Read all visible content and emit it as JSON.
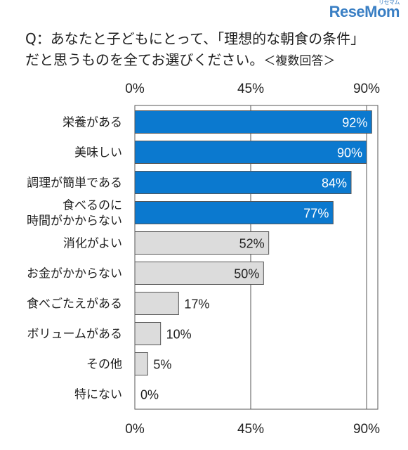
{
  "brand": {
    "logo_text": "ReseMom",
    "logo_sub": "リセマム"
  },
  "question": {
    "line1": "Q：あなたと子どもにとって、「理想的な朝食の条件」",
    "line2": "だと思うものを全てお選びください。",
    "note": "＜複数回答＞"
  },
  "colors": {
    "highlight": "#0b79cf",
    "other": "#dcdcdc",
    "border": "#555555",
    "text": "#222222"
  },
  "chart_data": {
    "type": "bar",
    "orientation": "horizontal",
    "categories": [
      "栄養がある",
      "美味しい",
      "調理が簡単である",
      "食べるのに\n時間がかからない",
      "消化がよい",
      "お金がかからない",
      "食べごたえがある",
      "ボリュームがある",
      "その他",
      "特にない"
    ],
    "values": [
      92,
      90,
      84,
      77,
      52,
      50,
      17,
      10,
      5,
      0
    ],
    "value_labels": [
      "92%",
      "90%",
      "84%",
      "77%",
      "52%",
      "50%",
      "17%",
      "10%",
      "5%",
      "0%"
    ],
    "highlighted": [
      true,
      true,
      true,
      true,
      false,
      false,
      false,
      false,
      false,
      false
    ],
    "xlim": [
      0,
      90
    ],
    "xticks": [
      0,
      45,
      90
    ],
    "xtick_labels": [
      "0%",
      "45%",
      "90%"
    ],
    "gridlines": true
  }
}
